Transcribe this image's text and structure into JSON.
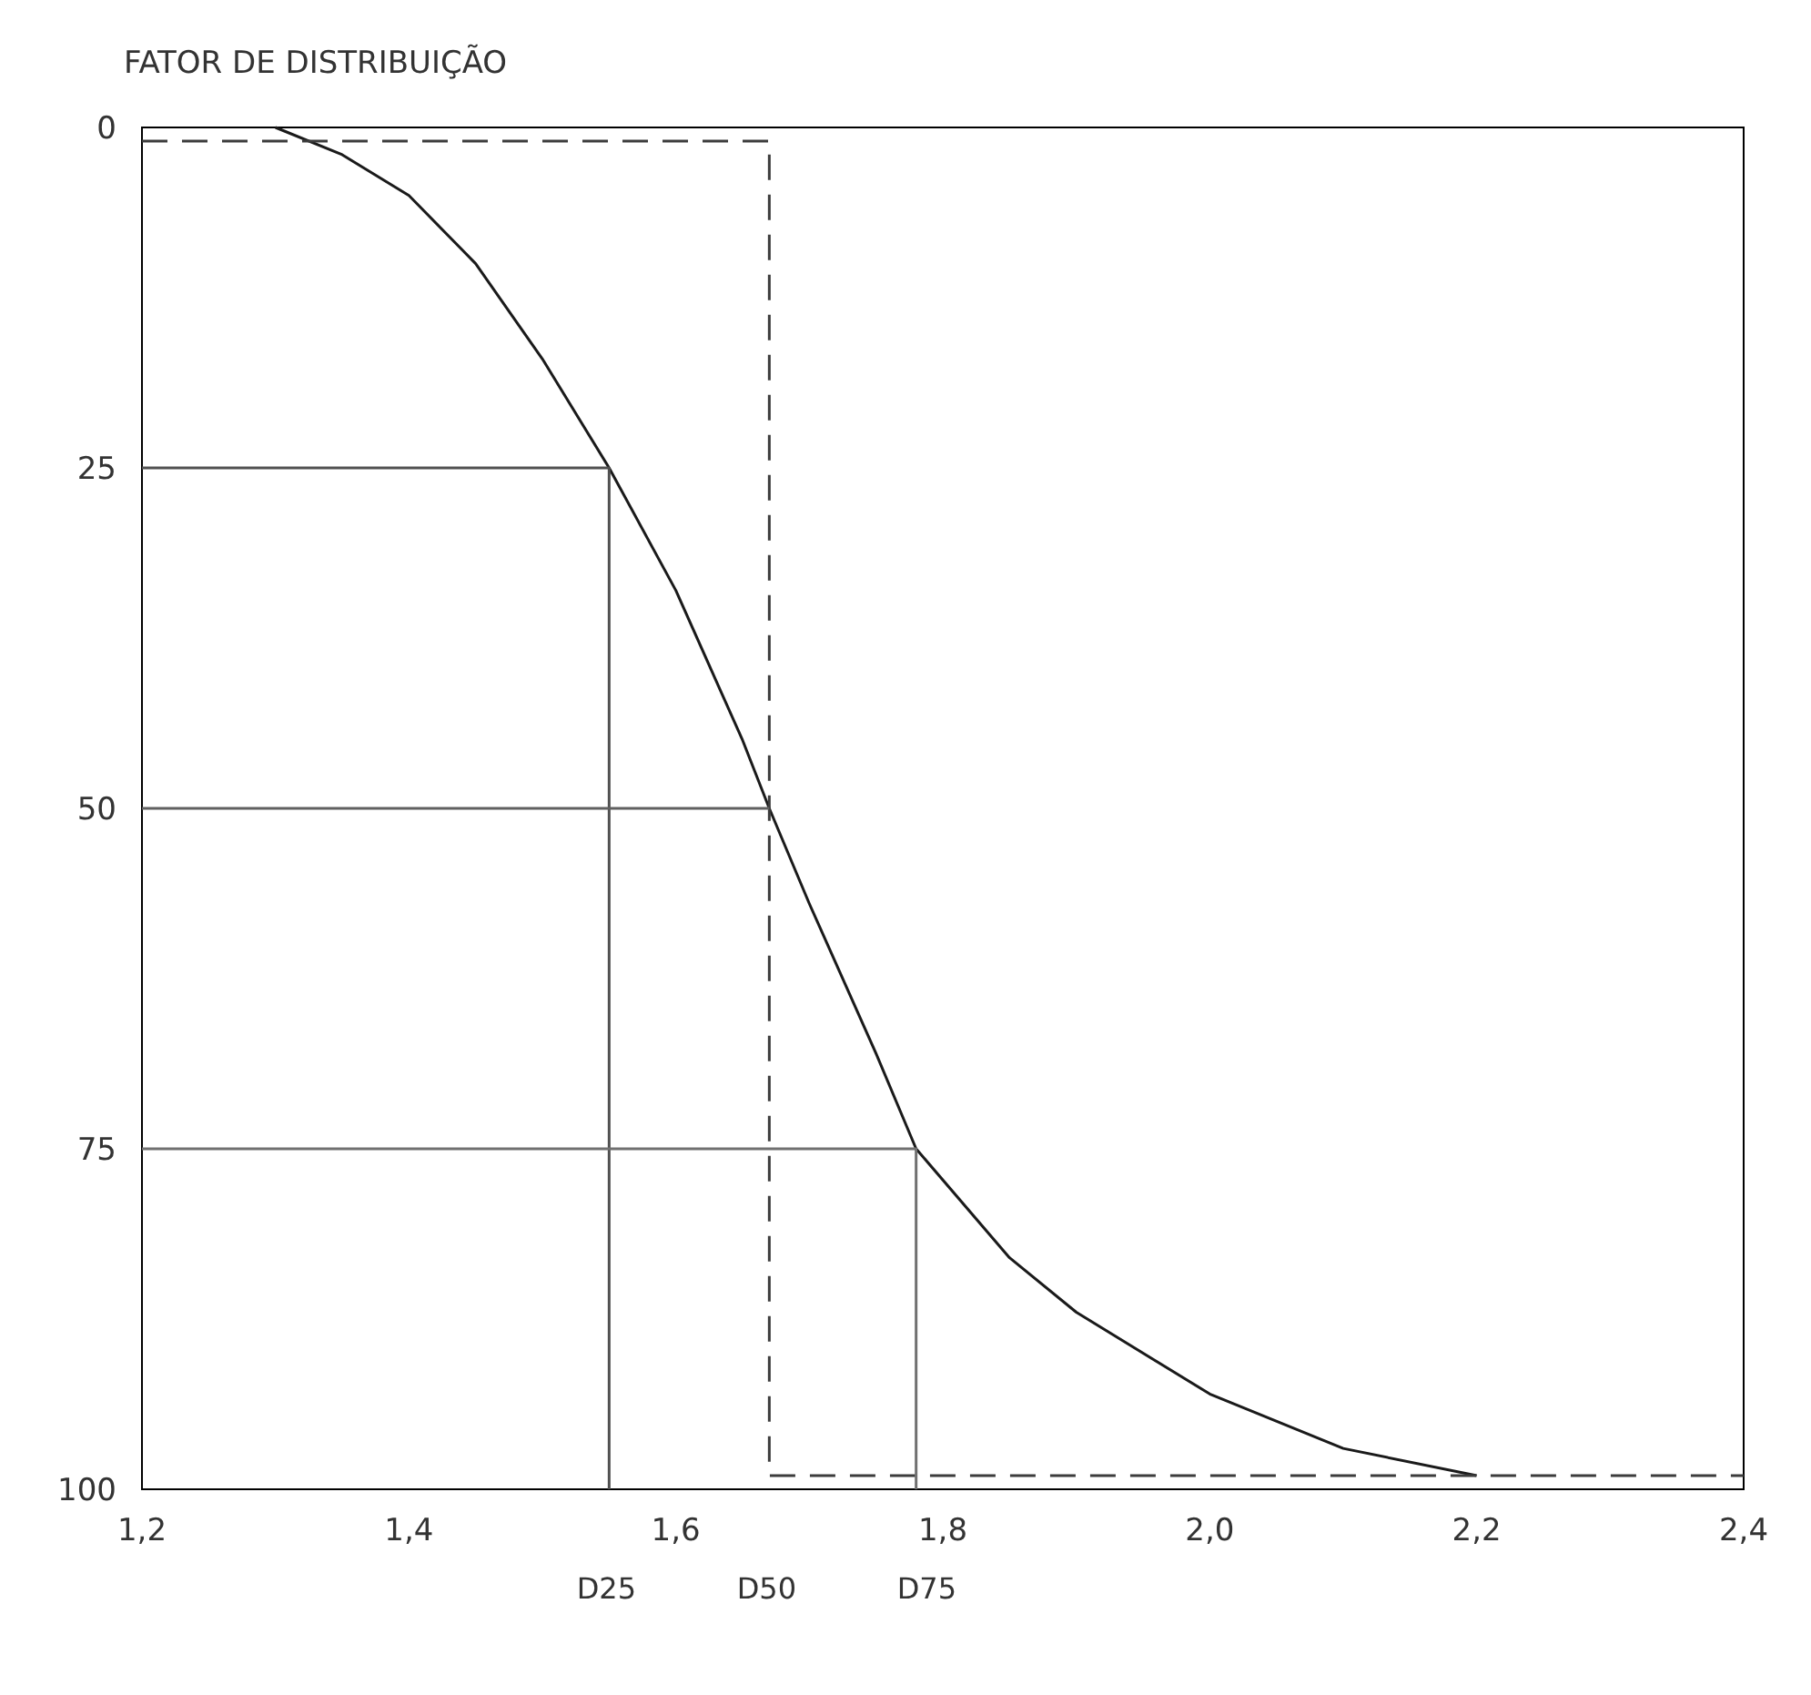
{
  "chart_data": {
    "type": "line",
    "ylabel": "FATOR DE DISTRIBUIÇÃO",
    "xlim": [
      1.2,
      2.4
    ],
    "ylim": [
      100,
      0
    ],
    "xticks": [
      {
        "value": 1.2,
        "label": "1,2"
      },
      {
        "value": 1.4,
        "label": "1,4"
      },
      {
        "value": 1.6,
        "label": "1,6"
      },
      {
        "value": 1.8,
        "label": "1,8"
      },
      {
        "value": 2.0,
        "label": "2,0"
      },
      {
        "value": 2.2,
        "label": "2,2"
      },
      {
        "value": 2.4,
        "label": "2,4"
      }
    ],
    "yticks": [
      0,
      25,
      50,
      75,
      100
    ],
    "marker": "none",
    "series": [
      {
        "color": "#1a1a1a",
        "line_style": "solid",
        "x": [
          1.3,
          1.35,
          1.4,
          1.45,
          1.5,
          1.55,
          1.6,
          1.65,
          1.67,
          1.7,
          1.75,
          1.78,
          1.85,
          1.9,
          2.0,
          2.1,
          2.2
        ],
        "values": [
          0,
          2,
          5,
          10,
          17,
          25,
          34,
          45,
          50,
          57,
          68,
          75,
          83,
          87,
          93,
          97,
          99
        ]
      },
      {
        "color": "#3c3c3c",
        "line_style": "dashed",
        "x": [
          1.2,
          1.67,
          1.67,
          2.4
        ],
        "values": [
          1,
          1,
          99,
          99
        ]
      },
      {
        "color": "#505050",
        "line_style": "solid",
        "x": [
          1.2,
          1.55,
          1.55
        ],
        "values": [
          25,
          25,
          100
        ]
      },
      {
        "color": "#606060",
        "line_style": "solid",
        "x": [
          1.2,
          1.67
        ],
        "values": [
          50,
          50
        ]
      },
      {
        "color": "#707070",
        "line_style": "solid",
        "x": [
          1.2,
          1.78,
          1.78
        ],
        "values": [
          75,
          75,
          100
        ]
      }
    ],
    "annotations": [
      "D25",
      "D50",
      "D75"
    ]
  }
}
